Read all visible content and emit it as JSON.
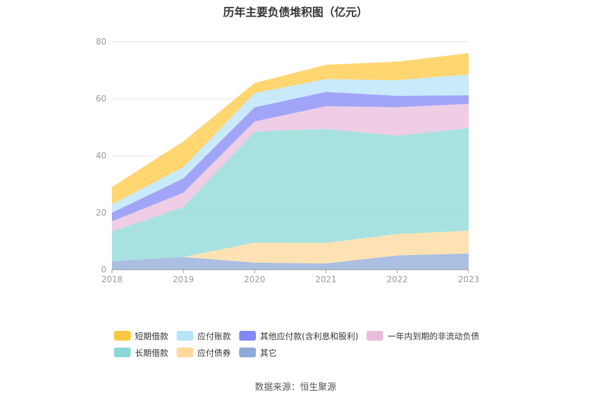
{
  "title": "历年主要负债堆积图（亿元）",
  "source": "数据来源：恒生聚源",
  "chart_data": {
    "type": "area",
    "stacked": true,
    "x": [
      "2018",
      "2019",
      "2020",
      "2021",
      "2022",
      "2023"
    ],
    "ylim": [
      0,
      80
    ],
    "yticks": [
      0,
      20,
      40,
      60,
      80
    ],
    "grid": true,
    "legend_position": "bottom",
    "series": [
      {
        "name": "其它",
        "color": "#8eaad8",
        "values": [
          3.0,
          4.5,
          2.5,
          2.2,
          5.0,
          5.7
        ]
      },
      {
        "name": "应付债券",
        "color": "#ffd89a",
        "values": [
          0,
          0,
          7.0,
          7.2,
          7.5,
          8.0
        ]
      },
      {
        "name": "长期借款",
        "color": "#8ad8d6",
        "values": [
          10.5,
          17.5,
          39.0,
          40.0,
          34.5,
          36.0
        ]
      },
      {
        "name": "一年内到期的非流动负债",
        "color": "#eabcdc",
        "values": [
          3.5,
          5.0,
          3.5,
          8.0,
          10.0,
          8.5
        ]
      },
      {
        "name": "其他应付款(含利息和股利)",
        "color": "#8187f4",
        "values": [
          3.0,
          5.0,
          5.0,
          5.0,
          4.0,
          3.0
        ]
      },
      {
        "name": "应付账款",
        "color": "#b5e3f8",
        "values": [
          3.0,
          4.0,
          5.0,
          4.5,
          5.5,
          7.3
        ]
      },
      {
        "name": "短期借款",
        "color": "#ffc840",
        "values": [
          6.0,
          9.0,
          3.5,
          5.0,
          6.5,
          7.5
        ]
      }
    ]
  },
  "legend": {
    "row1": [
      {
        "label": "短期借款",
        "color": "#ffc840"
      },
      {
        "label": "应付账款",
        "color": "#b5e3f8"
      },
      {
        "label": "其他应付款(含利息和股利)",
        "color": "#8187f4"
      },
      {
        "label": "一年内到期的非流动负债",
        "color": "#eabcdc"
      }
    ],
    "row2": [
      {
        "label": "长期借款",
        "color": "#8ad8d6"
      },
      {
        "label": "应付债券",
        "color": "#ffd89a"
      },
      {
        "label": "其它",
        "color": "#8eaad8"
      }
    ]
  }
}
